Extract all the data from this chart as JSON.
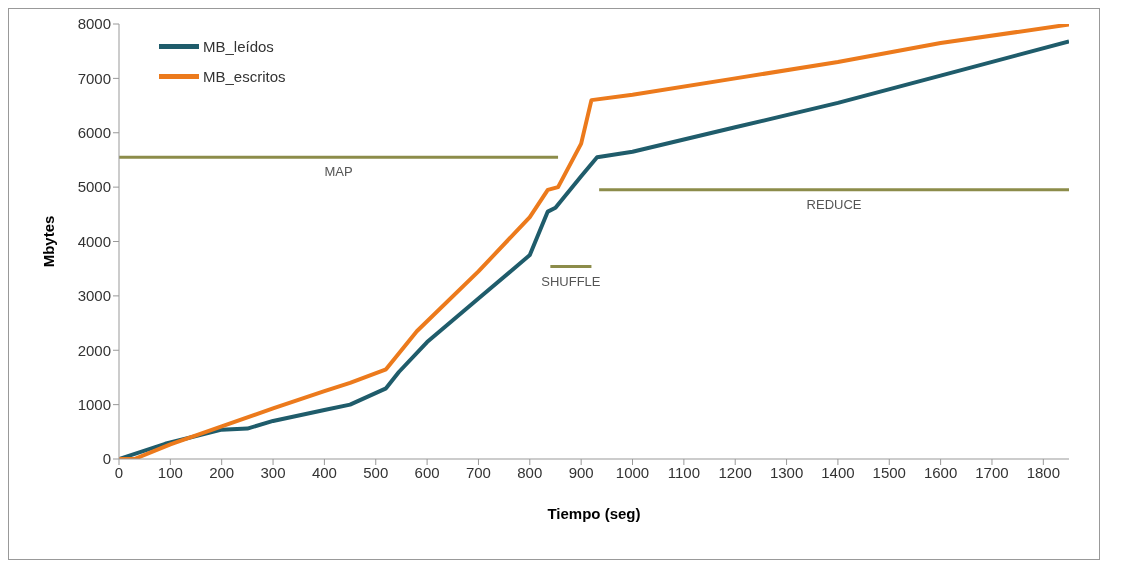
{
  "chart_data": {
    "type": "line",
    "xlabel": "Tiempo (seg)",
    "ylabel": "Mbytes",
    "xlim": [
      0,
      1850
    ],
    "xticks": [
      0,
      100,
      200,
      300,
      400,
      500,
      600,
      700,
      800,
      900,
      1000,
      1100,
      1200,
      1300,
      1400,
      1500,
      1600,
      1700,
      1800
    ],
    "ylim": [
      0,
      8000
    ],
    "yticks": [
      0,
      1000,
      2000,
      3000,
      4000,
      5000,
      6000,
      7000,
      8000
    ],
    "grid": false,
    "legend": "top left",
    "marker": "none",
    "line_style": "solid",
    "series": [
      {
        "name": "MB_leídos",
        "color": "#1f5c6b",
        "x": [
          0,
          90,
          200,
          250,
          300,
          400,
          450,
          520,
          545,
          600,
          700,
          800,
          835,
          850,
          900,
          931,
          1000,
          1200,
          1400,
          1600,
          1850
        ],
        "values": [
          0,
          280,
          540,
          560,
          700,
          900,
          1000,
          1300,
          1600,
          2150,
          2950,
          3750,
          4550,
          4620,
          5200,
          5550,
          5650,
          6100,
          6550,
          7050,
          7680
        ]
      },
      {
        "name": "MB_escritos",
        "color": "#ec7a1c",
        "x": [
          0,
          30,
          100,
          200,
          300,
          400,
          450,
          520,
          580,
          700,
          800,
          835,
          855,
          900,
          920,
          1000,
          1200,
          1400,
          1600,
          1850
        ],
        "values": [
          0,
          0,
          270,
          600,
          930,
          1250,
          1400,
          1650,
          2350,
          3450,
          4450,
          4950,
          5000,
          5800,
          6600,
          6700,
          7000,
          7300,
          7650,
          7990
        ]
      },
      {
        "color": "#8c8c4a",
        "x": [
          0,
          855
        ],
        "values": [
          5550,
          5550
        ]
      },
      {
        "color": "#8c8c4a",
        "x": [
          840,
          920
        ],
        "values": [
          3540,
          3540
        ]
      },
      {
        "color": "#8c8c4a",
        "x": [
          935,
          1850
        ],
        "values": [
          4950,
          4950
        ]
      }
    ],
    "annotations": [
      "MAP",
      "SHUFFLE",
      "REDUCE"
    ]
  }
}
